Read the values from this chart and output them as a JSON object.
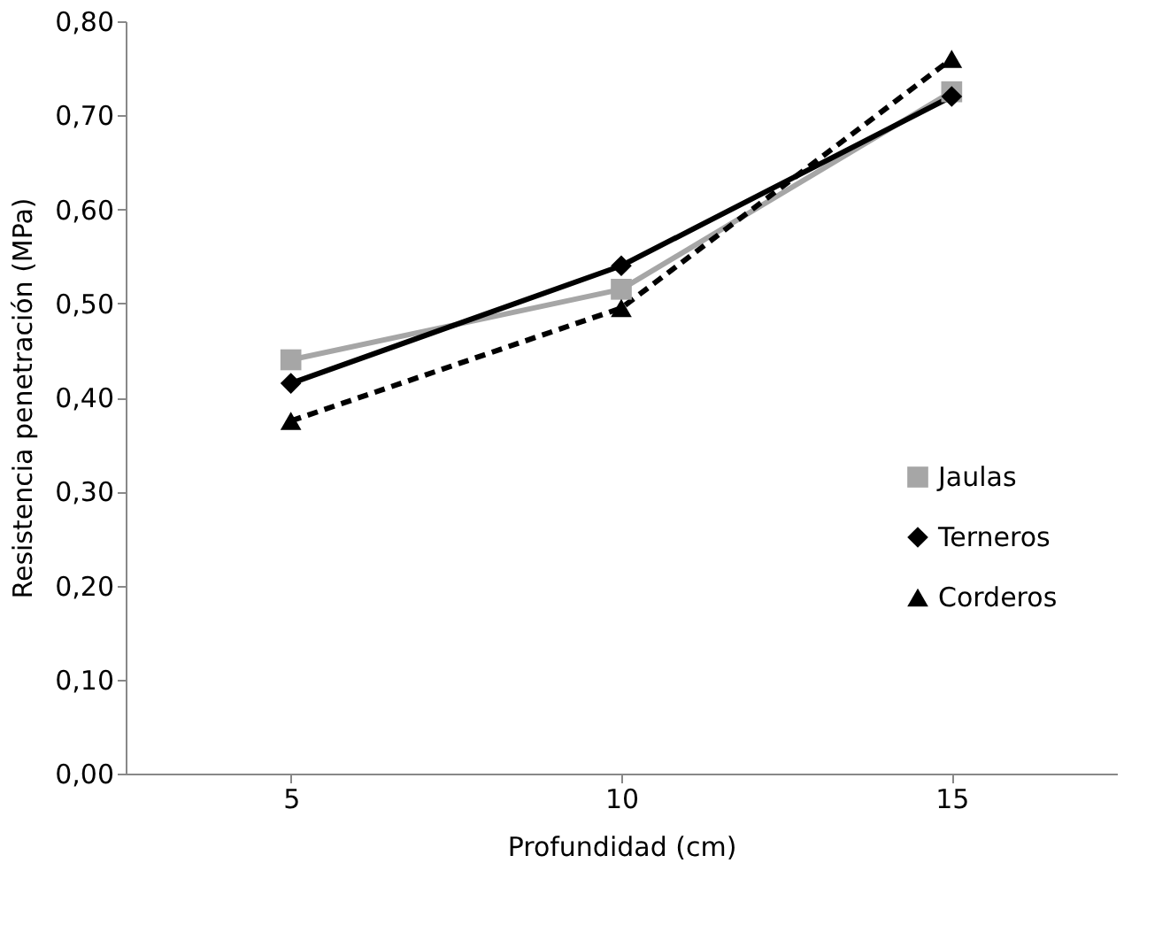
{
  "chart_data": {
    "type": "line",
    "xlabel": "Profundidad (cm)",
    "ylabel": "Resistencia penetración (MPa)",
    "categories": [
      "5",
      "10",
      "15"
    ],
    "series": [
      {
        "name": "Jaulas",
        "color": "#a6a6a6",
        "marker": "square",
        "line_style": "solid",
        "values": [
          0.44,
          0.515,
          0.725
        ]
      },
      {
        "name": "Terneros",
        "color": "#000000",
        "marker": "diamond",
        "line_style": "solid",
        "values": [
          0.415,
          0.54,
          0.72
        ]
      },
      {
        "name": "Corderos",
        "color": "#000000",
        "marker": "triangle",
        "line_style": "dashed",
        "values": [
          0.375,
          0.495,
          0.76
        ]
      }
    ],
    "ylim": [
      0,
      0.8
    ],
    "yticks": [
      {
        "value": 0,
        "label": "0,00"
      },
      {
        "value": 0.1,
        "label": "0,10"
      },
      {
        "value": 0.2,
        "label": "0,20"
      },
      {
        "value": 0.3,
        "label": "0,30"
      },
      {
        "value": 0.4,
        "label": "0,40"
      },
      {
        "value": 0.5,
        "label": "0,50"
      },
      {
        "value": 0.6,
        "label": "0,60"
      },
      {
        "value": 0.7,
        "label": "0,70"
      },
      {
        "value": 0.8,
        "label": "0,80"
      }
    ],
    "grid": false,
    "legend": "right"
  }
}
